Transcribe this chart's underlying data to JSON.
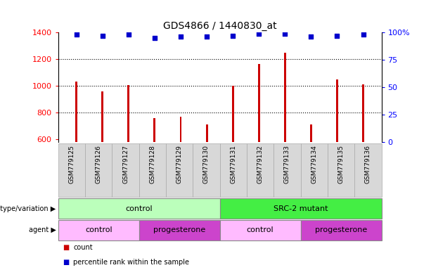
{
  "title": "GDS4866 / 1440830_at",
  "samples": [
    "GSM779125",
    "GSM779126",
    "GSM779127",
    "GSM779128",
    "GSM779129",
    "GSM779130",
    "GSM779131",
    "GSM779132",
    "GSM779133",
    "GSM779134",
    "GSM779135",
    "GSM779136"
  ],
  "count_values": [
    1030,
    960,
    1005,
    755,
    770,
    710,
    1000,
    1165,
    1245,
    710,
    1045,
    1010
  ],
  "percentile_values": [
    98,
    97,
    98,
    95,
    96,
    96,
    97,
    99,
    99,
    96,
    97,
    98
  ],
  "ylim_left": [
    580,
    1400
  ],
  "ylim_right": [
    0,
    100
  ],
  "yticks_left": [
    600,
    800,
    1000,
    1200,
    1400
  ],
  "yticks_right": [
    0,
    25,
    50,
    75,
    100
  ],
  "bar_color": "#cc0000",
  "dot_color": "#0000cc",
  "bar_width": 0.08,
  "genotype_groups": [
    {
      "label": "control",
      "start": 0,
      "end": 6,
      "color": "#bbffbb"
    },
    {
      "label": "SRC-2 mutant",
      "start": 6,
      "end": 12,
      "color": "#44ee44"
    }
  ],
  "agent_groups": [
    {
      "label": "control",
      "start": 0,
      "end": 3,
      "color": "#ffbbff"
    },
    {
      "label": "progesterone",
      "start": 3,
      "end": 6,
      "color": "#cc44cc"
    },
    {
      "label": "control",
      "start": 6,
      "end": 9,
      "color": "#ffbbff"
    },
    {
      "label": "progesterone",
      "start": 9,
      "end": 12,
      "color": "#cc44cc"
    }
  ],
  "legend_items": [
    {
      "label": "count",
      "color": "#cc0000"
    },
    {
      "label": "percentile rank within the sample",
      "color": "#0000cc"
    }
  ],
  "grid_yticks": [
    800,
    1000,
    1200
  ],
  "grid_color": "black",
  "fig_width": 6.13,
  "fig_height": 3.84,
  "dpi": 100
}
